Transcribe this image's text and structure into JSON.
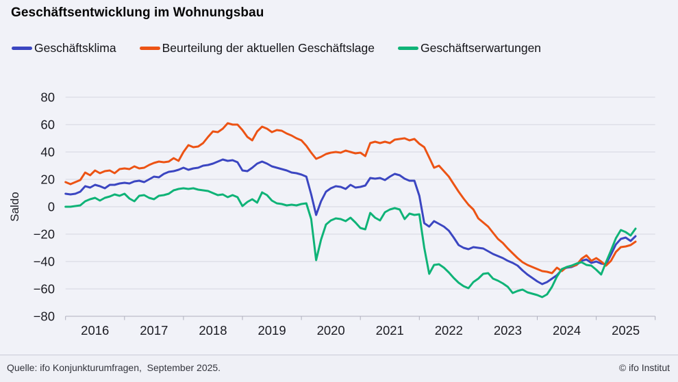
{
  "header": {
    "title": "Geschäftsentwicklung im Wohnungsbau"
  },
  "footer": {
    "source": "Quelle: ifo Konjunkturumfragen,  September 2025.",
    "copyright": "© ifo Institut"
  },
  "colors": {
    "background": "#f1f2f8",
    "gridline": "#d5d6e1",
    "axis": "#aeafbd",
    "tick_text": "#1b1b22",
    "klima_blue": "#3b46c1",
    "lage_orange": "#ec5314",
    "erwartungen_green": "#0fb377"
  },
  "chart_data": {
    "type": "line",
    "title": "Geschäftsentwicklung im Wohnungsbau",
    "ylabel": "Saldo",
    "xlabel": "",
    "grid": "horizontal",
    "legend_position": "top-left",
    "ylim": [
      -80,
      80
    ],
    "ytick_step": 20,
    "ytick_labels": [
      "80",
      "60",
      "40",
      "20",
      "0",
      "−20",
      "−40",
      "−60",
      "−80"
    ],
    "x_tick_labels": [
      "2016",
      "2017",
      "2018",
      "2019",
      "2020",
      "2021",
      "2022",
      "2023",
      "2024",
      "2025"
    ],
    "x_start": "2016-01",
    "x_end": "2025-09",
    "frequency": "monthly",
    "series": [
      {
        "name": "Geschäftsklima",
        "color": "#3b46c1",
        "values": [
          9.5,
          9,
          9.5,
          11,
          15,
          14,
          16,
          15,
          13.5,
          16,
          16,
          17,
          17.5,
          17,
          18.5,
          19,
          18,
          20,
          22,
          21.5,
          24,
          25.5,
          26,
          27,
          28.5,
          27,
          28,
          28.5,
          30,
          30.5,
          31.5,
          33,
          34.5,
          33.5,
          34,
          32.5,
          26.5,
          26,
          28.5,
          31.5,
          33,
          31.5,
          29.5,
          28.5,
          27.5,
          26.5,
          25,
          24.5,
          23.5,
          22,
          9,
          -6,
          4,
          11,
          13.5,
          15,
          14.5,
          13,
          16,
          14,
          14.5,
          15.5,
          21,
          20.5,
          21,
          19.5,
          22,
          24,
          23,
          20.5,
          19,
          19,
          8,
          -12,
          -14.5,
          -10.5,
          -12.5,
          -14.5,
          -17.5,
          -22.5,
          -28,
          -30,
          -31,
          -29.5,
          -30,
          -30.5,
          -32.5,
          -34.5,
          -36,
          -37.5,
          -39.5,
          -41,
          -43,
          -46.5,
          -49.5,
          -52,
          -54.5,
          -56.5,
          -55,
          -52.5,
          -50,
          -46,
          -44.5,
          -44,
          -42.5,
          -39.5,
          -38.5,
          -41,
          -40,
          -41.5,
          -42,
          -35,
          -27.5,
          -23.5,
          -22.5,
          -25,
          -21.5
        ]
      },
      {
        "name": "Beurteilung der aktuellen Geschäftslage",
        "color": "#ec5314",
        "values": [
          18,
          16.5,
          18,
          19.5,
          25,
          23,
          26.5,
          24.5,
          26,
          26.5,
          24.5,
          27.5,
          28,
          27.5,
          29.5,
          28,
          28.5,
          30.5,
          32,
          33,
          32.5,
          33,
          35.5,
          33.5,
          40,
          45,
          43.5,
          44,
          46.5,
          51,
          55,
          54.5,
          57,
          61,
          60,
          60,
          56,
          51,
          48.5,
          55,
          58.5,
          57,
          54.5,
          56,
          55.5,
          53.5,
          52,
          50,
          48.5,
          44.5,
          39.5,
          35,
          36.5,
          38.5,
          39.5,
          40,
          39.5,
          41,
          40,
          39,
          39.5,
          37,
          46.5,
          47.5,
          46.5,
          47.5,
          46.5,
          49,
          49.5,
          50,
          48.5,
          49.5,
          46,
          43.5,
          36,
          28.5,
          30,
          26,
          22,
          16.5,
          11,
          6,
          1.5,
          -2,
          -8.5,
          -11.5,
          -14.5,
          -19,
          -23.5,
          -26.5,
          -30.5,
          -34,
          -37.5,
          -40.5,
          -42.5,
          -44,
          -45.5,
          -47,
          -47.5,
          -48.5,
          -44.5,
          -47,
          -44,
          -43.5,
          -42.5,
          -38,
          -35.5,
          -39.5,
          -37.5,
          -40,
          -43,
          -39.5,
          -33,
          -29.5,
          -29,
          -28,
          -25.5
        ]
      },
      {
        "name": "Geschäftserwartungen",
        "color": "#0fb377",
        "values": [
          0,
          0,
          0.5,
          1,
          4,
          5.5,
          6.5,
          4.5,
          6.5,
          7.5,
          9,
          8,
          9.5,
          6,
          4,
          8,
          8.5,
          6.5,
          5.5,
          8,
          8.5,
          9.5,
          12,
          13,
          13.5,
          13,
          13.5,
          12.5,
          12,
          11.5,
          10,
          8.5,
          9,
          7,
          8.5,
          7,
          0.5,
          3.5,
          5.5,
          3,
          10.5,
          8.5,
          4.5,
          2.5,
          2,
          1,
          1.5,
          1,
          2,
          2.5,
          -9,
          -39,
          -24,
          -13,
          -10,
          -8.5,
          -9,
          -10.5,
          -8,
          -11.5,
          -15.5,
          -16.5,
          -4.5,
          -8,
          -10,
          -4,
          -2,
          -1,
          -2,
          -9,
          -5,
          -6,
          -5.5,
          -30,
          -49,
          -42.5,
          -42,
          -44.5,
          -48,
          -52,
          -55.5,
          -58,
          -59.5,
          -55,
          -52.5,
          -49,
          -48.5,
          -52.5,
          -54,
          -56,
          -58.5,
          -63,
          -61.5,
          -60.5,
          -62.5,
          -63.5,
          -64.5,
          -66,
          -64,
          -58.5,
          -51,
          -45.5,
          -44,
          -43,
          -41.5,
          -40.5,
          -42.5,
          -43,
          -46,
          -49.5,
          -40.5,
          -32,
          -23,
          -17,
          -18.5,
          -21,
          -16
        ]
      }
    ]
  }
}
